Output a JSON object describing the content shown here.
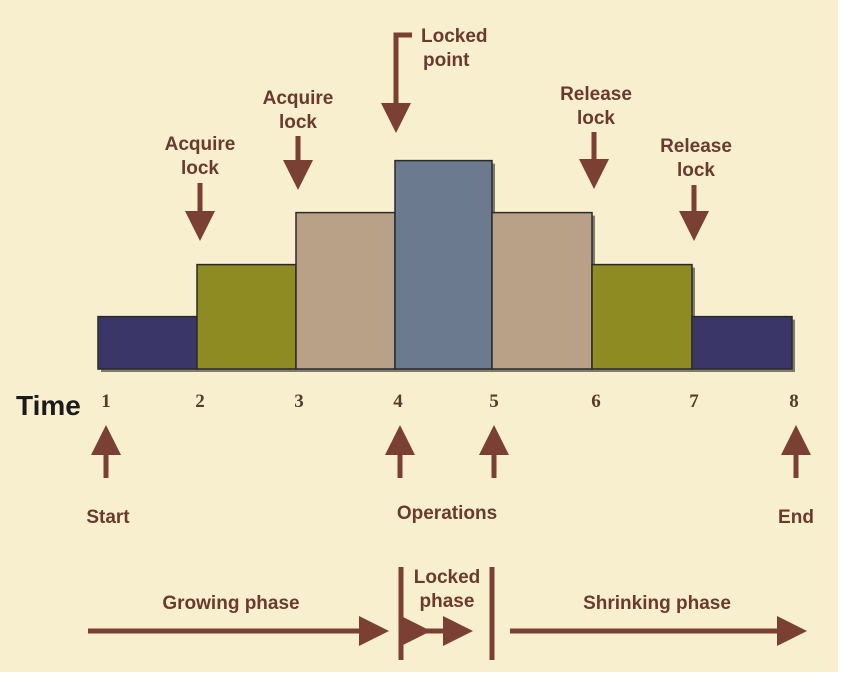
{
  "colors": {
    "background": "#f8efcf",
    "arrow": "#7a4034",
    "step_edge": "#2a2a2a",
    "navy": "#3a3768",
    "olive": "#8e8b22",
    "tan": "#b8a187",
    "slate": "#6b7a8e"
  },
  "axis": {
    "label": "Time",
    "ticks": [
      "1",
      "2",
      "3",
      "4",
      "5",
      "6",
      "7",
      "8"
    ]
  },
  "levels": [
    1,
    2,
    3,
    4,
    3,
    2,
    1
  ],
  "step_colors": [
    "navy",
    "olive",
    "tan",
    "slate",
    "tan",
    "olive",
    "navy"
  ],
  "top_callouts": [
    {
      "id": "acquire-1",
      "lines": [
        "Acquire",
        "lock"
      ]
    },
    {
      "id": "acquire-2",
      "lines": [
        "Acquire",
        "lock"
      ]
    },
    {
      "id": "locked-point",
      "lines": [
        "Locked",
        "point"
      ]
    },
    {
      "id": "release-1",
      "lines": [
        "Release",
        "lock"
      ]
    },
    {
      "id": "release-2",
      "lines": [
        "Release",
        "lock"
      ]
    }
  ],
  "bottom_callouts": {
    "start": "Start",
    "operations": "Operations",
    "end": "End"
  },
  "phases": {
    "growing": "Growing phase",
    "locked": [
      "Locked",
      "phase"
    ],
    "shrinking": "Shrinking phase"
  }
}
